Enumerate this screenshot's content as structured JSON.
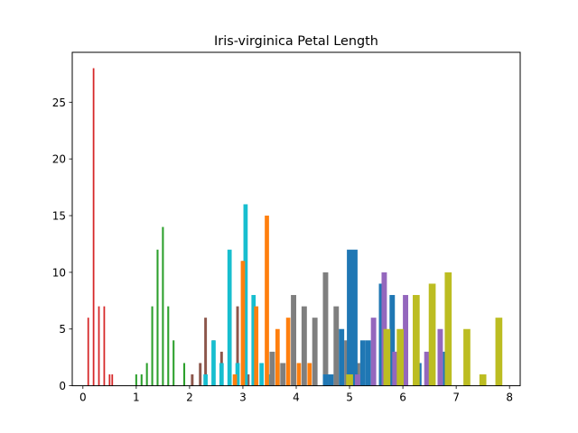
{
  "chart_data": {
    "type": "bar",
    "title": "Iris-virginica Petal Length",
    "xlabel": "",
    "ylabel": "",
    "xlim": [
      -0.2,
      8.2
    ],
    "ylim": [
      0,
      29.4
    ],
    "xticks": [
      "0",
      "1",
      "2",
      "3",
      "4",
      "5",
      "6",
      "7",
      "8"
    ],
    "yticks": [
      "0",
      "5",
      "10",
      "15",
      "20",
      "25"
    ],
    "grid": false,
    "legend": "none",
    "series": [
      {
        "color": "#d62728",
        "width": 0.03,
        "points": [
          [
            0.1,
            6
          ],
          [
            0.2,
            28
          ],
          [
            0.3,
            7
          ],
          [
            0.4,
            7
          ],
          [
            0.5,
            1
          ],
          [
            0.55,
            1
          ]
        ]
      },
      {
        "color": "#2ca02c",
        "width": 0.035,
        "points": [
          [
            1.0,
            1
          ],
          [
            1.1,
            1
          ],
          [
            1.2,
            2
          ],
          [
            1.3,
            7
          ],
          [
            1.4,
            12
          ],
          [
            1.5,
            14
          ],
          [
            1.6,
            7
          ],
          [
            1.7,
            4
          ],
          [
            1.9,
            2
          ]
        ]
      },
      {
        "color": "#8c564b",
        "width": 0.05,
        "points": [
          [
            2.05,
            1
          ],
          [
            2.2,
            2
          ],
          [
            2.3,
            6
          ],
          [
            2.45,
            4
          ],
          [
            2.6,
            3
          ],
          [
            2.9,
            7
          ],
          [
            3.0,
            11
          ],
          [
            3.1,
            1
          ],
          [
            3.2,
            3
          ]
        ]
      },
      {
        "color": "#17becf",
        "width": 0.08,
        "points": [
          [
            2.3,
            1
          ],
          [
            2.45,
            4
          ],
          [
            2.6,
            2
          ],
          [
            2.75,
            12
          ],
          [
            2.9,
            2
          ],
          [
            3.05,
            16
          ],
          [
            3.2,
            8
          ],
          [
            3.35,
            2
          ],
          [
            3.5,
            1
          ],
          [
            3.65,
            2
          ]
        ]
      },
      {
        "color": "#ff7f0e",
        "width": 0.08,
        "points": [
          [
            2.85,
            1
          ],
          [
            3.0,
            11
          ],
          [
            3.25,
            7
          ],
          [
            3.45,
            15
          ],
          [
            3.65,
            5
          ],
          [
            3.85,
            6
          ],
          [
            4.05,
            2
          ],
          [
            4.25,
            2
          ]
        ]
      },
      {
        "color": "#7f7f7f",
        "width": 0.1,
        "points": [
          [
            3.55,
            3
          ],
          [
            3.75,
            2
          ],
          [
            3.95,
            8
          ],
          [
            4.15,
            7
          ],
          [
            4.35,
            6
          ],
          [
            4.55,
            10
          ],
          [
            4.75,
            7
          ],
          [
            4.95,
            4
          ],
          [
            5.15,
            2
          ]
        ]
      },
      {
        "color": "#1f77b4",
        "width": 0.1,
        "points": [
          [
            4.55,
            1
          ],
          [
            4.65,
            1
          ],
          [
            4.85,
            5
          ],
          [
            5.0,
            12
          ],
          [
            5.1,
            12
          ],
          [
            5.25,
            4
          ],
          [
            5.35,
            4
          ],
          [
            5.6,
            9
          ],
          [
            5.8,
            8
          ],
          [
            6.05,
            5
          ],
          [
            6.3,
            2
          ],
          [
            6.55,
            1
          ],
          [
            6.8,
            3
          ]
        ]
      },
      {
        "color": "#9467bd",
        "width": 0.1,
        "points": [
          [
            5.15,
            1
          ],
          [
            5.45,
            6
          ],
          [
            5.65,
            10
          ],
          [
            5.85,
            3
          ],
          [
            6.05,
            8
          ],
          [
            6.45,
            3
          ],
          [
            6.7,
            5
          ],
          [
            6.85,
            3
          ]
        ]
      },
      {
        "color": "#bcbd22",
        "width": 0.13,
        "points": [
          [
            5.0,
            1
          ],
          [
            5.7,
            5
          ],
          [
            5.95,
            5
          ],
          [
            6.25,
            8
          ],
          [
            6.55,
            9
          ],
          [
            6.85,
            10
          ],
          [
            7.2,
            5
          ],
          [
            7.5,
            1
          ],
          [
            7.8,
            6
          ]
        ]
      }
    ]
  }
}
